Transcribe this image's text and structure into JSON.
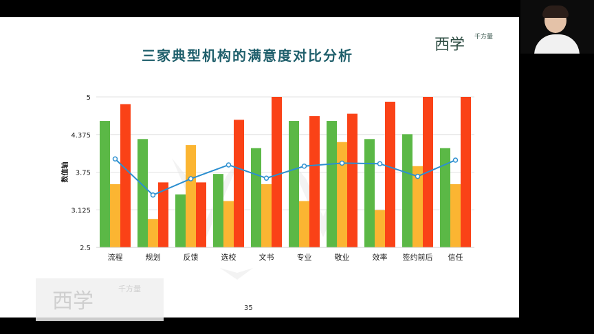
{
  "slide": {
    "title": "三家典型机构的满意度对比分析",
    "page_number": "35",
    "logo_text": "西学",
    "logo_sub": "千方量"
  },
  "watermark": {
    "main_text": "西学",
    "sub_text": "千方量"
  },
  "colors": {
    "green": "#5bb846",
    "orange": "#fbb532",
    "red": "#fa4217",
    "line": "#2c8fd0",
    "title": "#1f5f6b"
  },
  "chart_data": {
    "type": "bar",
    "title": "三家典型机构的满意度对比分析",
    "ylabel": "数值轴",
    "ylim": [
      2.5,
      5
    ],
    "yticks": [
      "2.5",
      "3.125",
      "3.75",
      "4.375",
      "5"
    ],
    "grid": true,
    "categories": [
      "流程",
      "规划",
      "反馈",
      "选校",
      "文书",
      "专业",
      "敬业",
      "效率",
      "签约前后",
      "信任"
    ],
    "series": [
      {
        "type": "bar",
        "color": "#5bb846",
        "values": [
          4.6,
          4.3,
          3.38,
          3.72,
          4.15,
          4.6,
          4.6,
          4.3,
          4.38,
          4.15
        ]
      },
      {
        "type": "bar",
        "color": "#fbb532",
        "values": [
          3.55,
          2.97,
          4.2,
          3.27,
          3.55,
          3.27,
          4.25,
          3.12,
          3.85,
          3.55
        ]
      },
      {
        "type": "bar",
        "color": "#fa4217",
        "values": [
          4.88,
          3.58,
          3.58,
          4.62,
          5.0,
          4.68,
          4.72,
          4.92,
          5.0,
          5.0
        ]
      },
      {
        "type": "line",
        "color": "#2c8fd0",
        "values": [
          3.97,
          3.37,
          3.64,
          3.87,
          3.65,
          3.85,
          3.9,
          3.89,
          3.68,
          3.95
        ]
      }
    ]
  }
}
